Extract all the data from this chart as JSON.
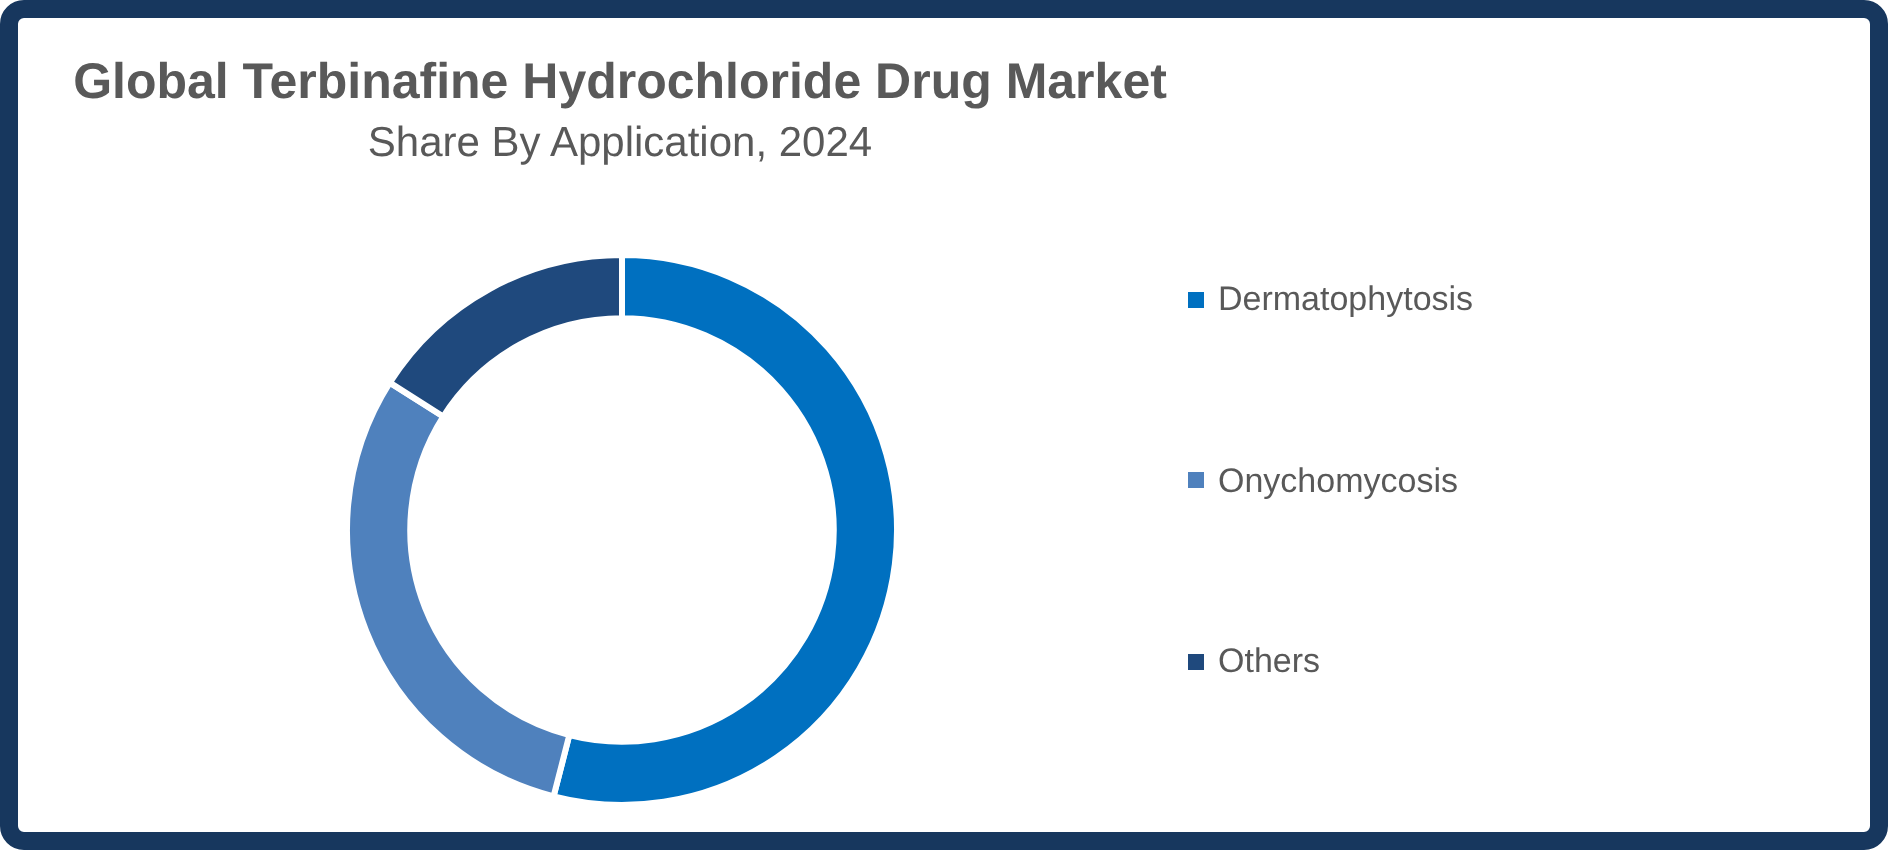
{
  "chart_data": {
    "type": "donut",
    "title": "Global Terbinafine Hydrochloride Drug Market",
    "subtitle": "Share By Application, 2024",
    "categories": [
      "Dermatophytosis",
      "Onychomycosis",
      "Others"
    ],
    "values": [
      54,
      30,
      16
    ],
    "colors": [
      "#0070c0",
      "#4f81bd",
      "#1f497d"
    ],
    "legend": "right"
  }
}
